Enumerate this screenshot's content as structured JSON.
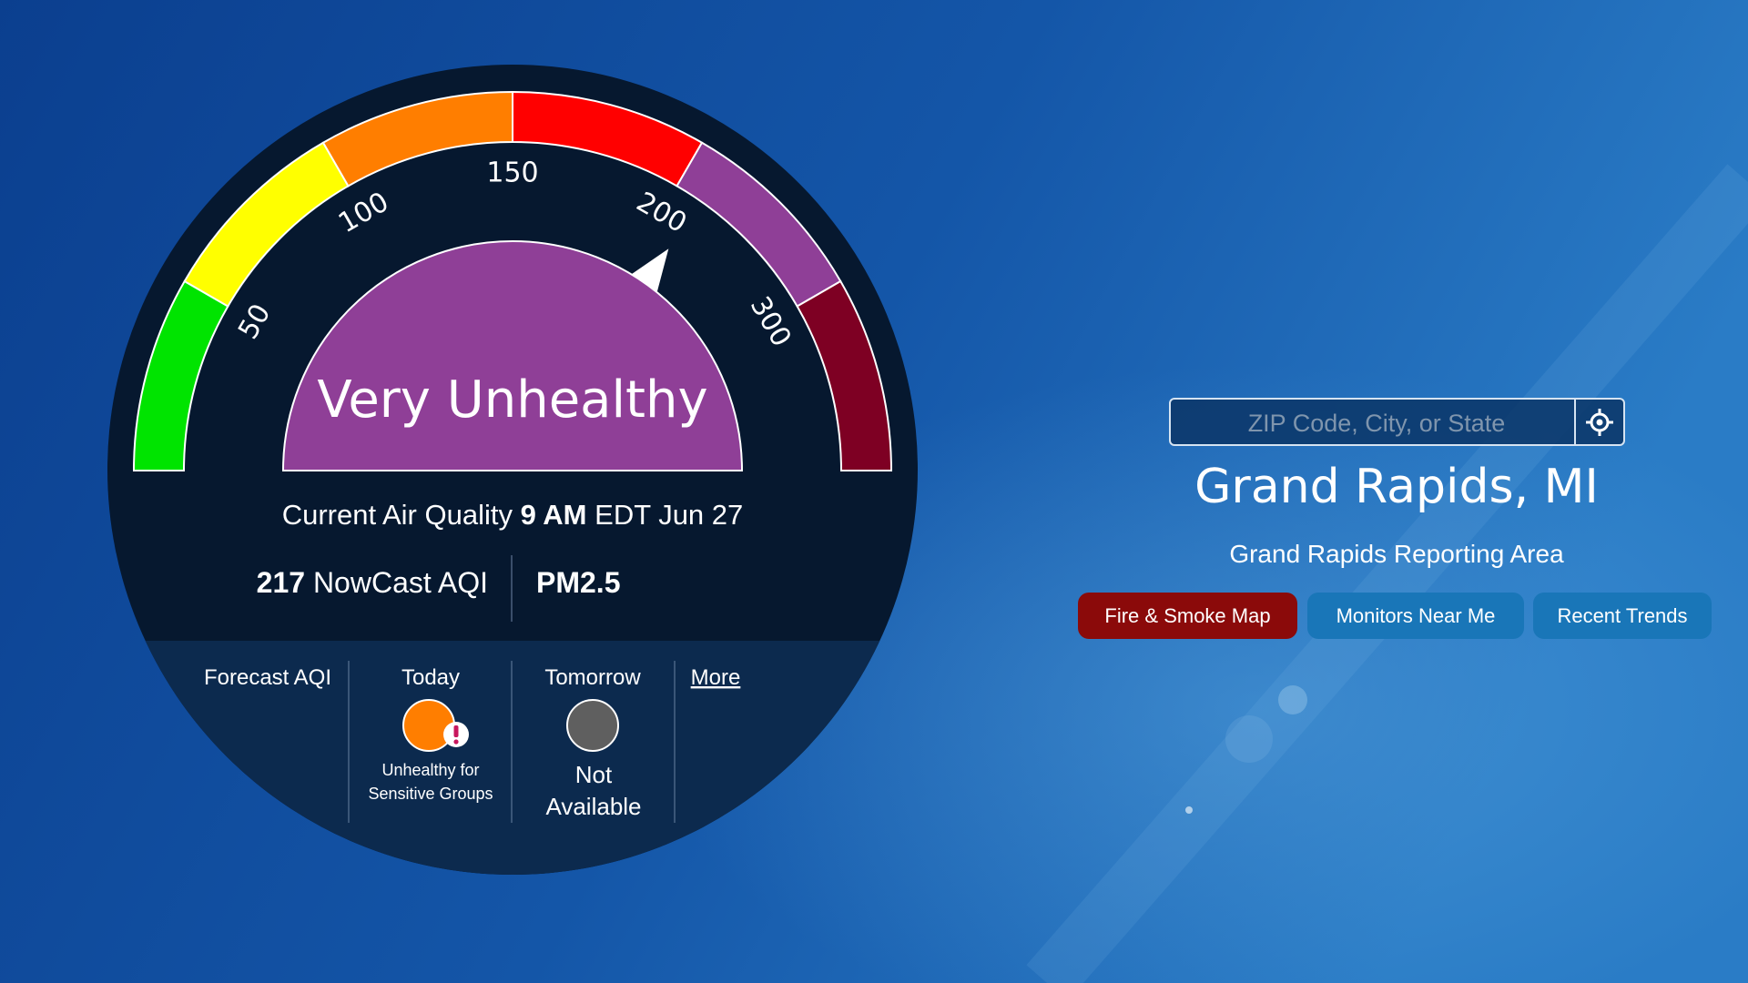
{
  "gauge": {
    "ticks": [
      50,
      100,
      150,
      200,
      300
    ],
    "category": "Very Unhealthy"
  },
  "current": {
    "label": "Current Air Quality",
    "time": "9 AM",
    "zone_date": "EDT Jun 27",
    "aqi": 217,
    "aqi_label": "NowCast AQI",
    "pollutant": "PM2.5"
  },
  "forecast": {
    "title": "Forecast AQI",
    "today": {
      "label": "Today",
      "status": [
        "Unhealthy for",
        "Sensitive Groups"
      ]
    },
    "tomorrow": {
      "label": "Tomorrow",
      "status": [
        "Not",
        "Available"
      ]
    },
    "more": "More"
  },
  "search": {
    "placeholder": "ZIP Code, City, or State"
  },
  "location": {
    "name": "Grand Rapids, MI",
    "area": "Grand Rapids Reporting Area"
  },
  "buttons": [
    "Fire & Smoke Map",
    "Monitors Near Me",
    "Recent Trends"
  ]
}
